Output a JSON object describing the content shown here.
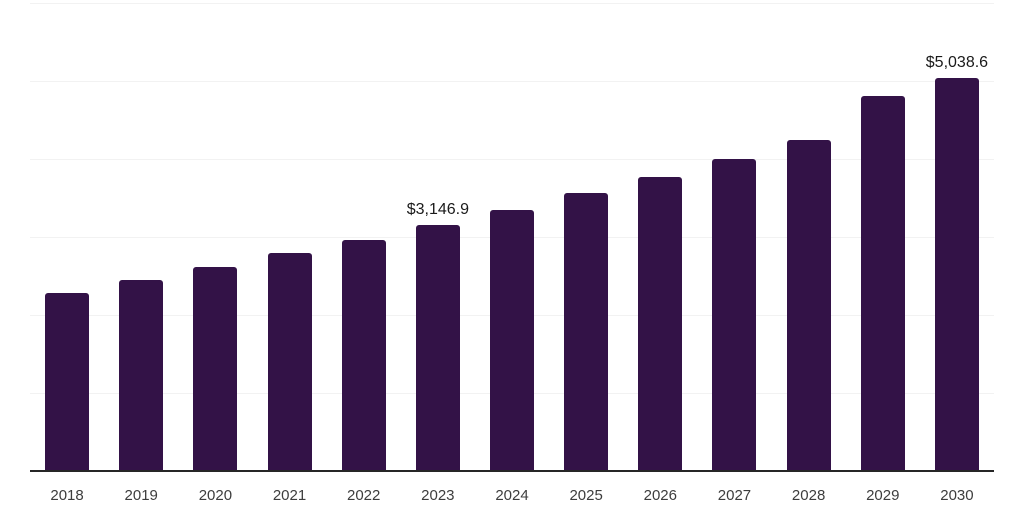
{
  "chart_data": {
    "type": "bar",
    "title": "",
    "xlabel": "",
    "ylabel": "",
    "categories": [
      "2018",
      "2019",
      "2020",
      "2021",
      "2022",
      "2023",
      "2024",
      "2025",
      "2026",
      "2027",
      "2028",
      "2029",
      "2030"
    ],
    "values": [
      2285,
      2443,
      2612,
      2789,
      2952,
      3146.9,
      3343,
      3558,
      3759,
      3999,
      4236,
      4799,
      5038.6
    ],
    "value_labels": {
      "2023": "$3,146.9",
      "2030": "$5,038.6"
    },
    "ylim": [
      0,
      6000
    ],
    "gridline_step": 1000,
    "grid": "horizontal-only",
    "legend_position": "none",
    "y_tick_labels_shown": false,
    "colors": {
      "bar": "#331247",
      "gridline": "#f2f2f2",
      "axis_line": "#262626",
      "tick_label": "#3d3d3d",
      "value_label": "#1a1a1a",
      "background": "#ffffff"
    }
  }
}
